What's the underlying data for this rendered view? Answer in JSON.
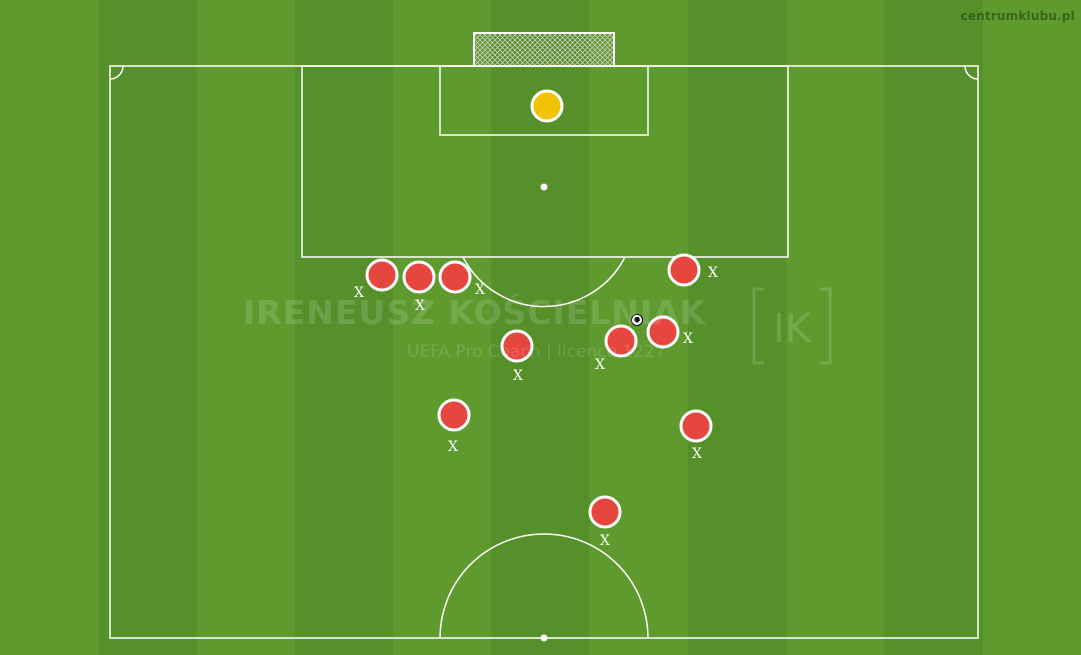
{
  "brand": "centrumklubu.pl",
  "watermark": {
    "name": "IRENEUSZ KOŚCIELNIAK",
    "subtitle": "UEFA Pro Coach  |  licence 1227",
    "logo_text": "IK"
  },
  "colors": {
    "grass_light": "#5f9a2e",
    "grass_dark": "#56902a",
    "lines": "#ffffff",
    "player_fill": "#e5473f",
    "goalkeeper_fill": "#f2c300",
    "player_border": "#ffffff"
  },
  "marker_label": "X",
  "markers": {
    "goalkeeper": {
      "icon": "goalkeeper-icon"
    },
    "players": [
      {
        "icon": "player-icon",
        "marked": true
      },
      {
        "icon": "player-icon",
        "marked": true
      },
      {
        "icon": "player-icon",
        "marked": true
      },
      {
        "icon": "player-icon",
        "marked": true
      },
      {
        "icon": "player-icon",
        "marked": true
      },
      {
        "icon": "player-icon",
        "marked": true
      },
      {
        "icon": "player-icon",
        "marked": true
      },
      {
        "icon": "player-icon",
        "marked": true
      },
      {
        "icon": "player-icon",
        "marked": true
      },
      {
        "icon": "player-icon",
        "marked": true
      }
    ],
    "ball": {
      "icon": "ball-icon"
    }
  }
}
